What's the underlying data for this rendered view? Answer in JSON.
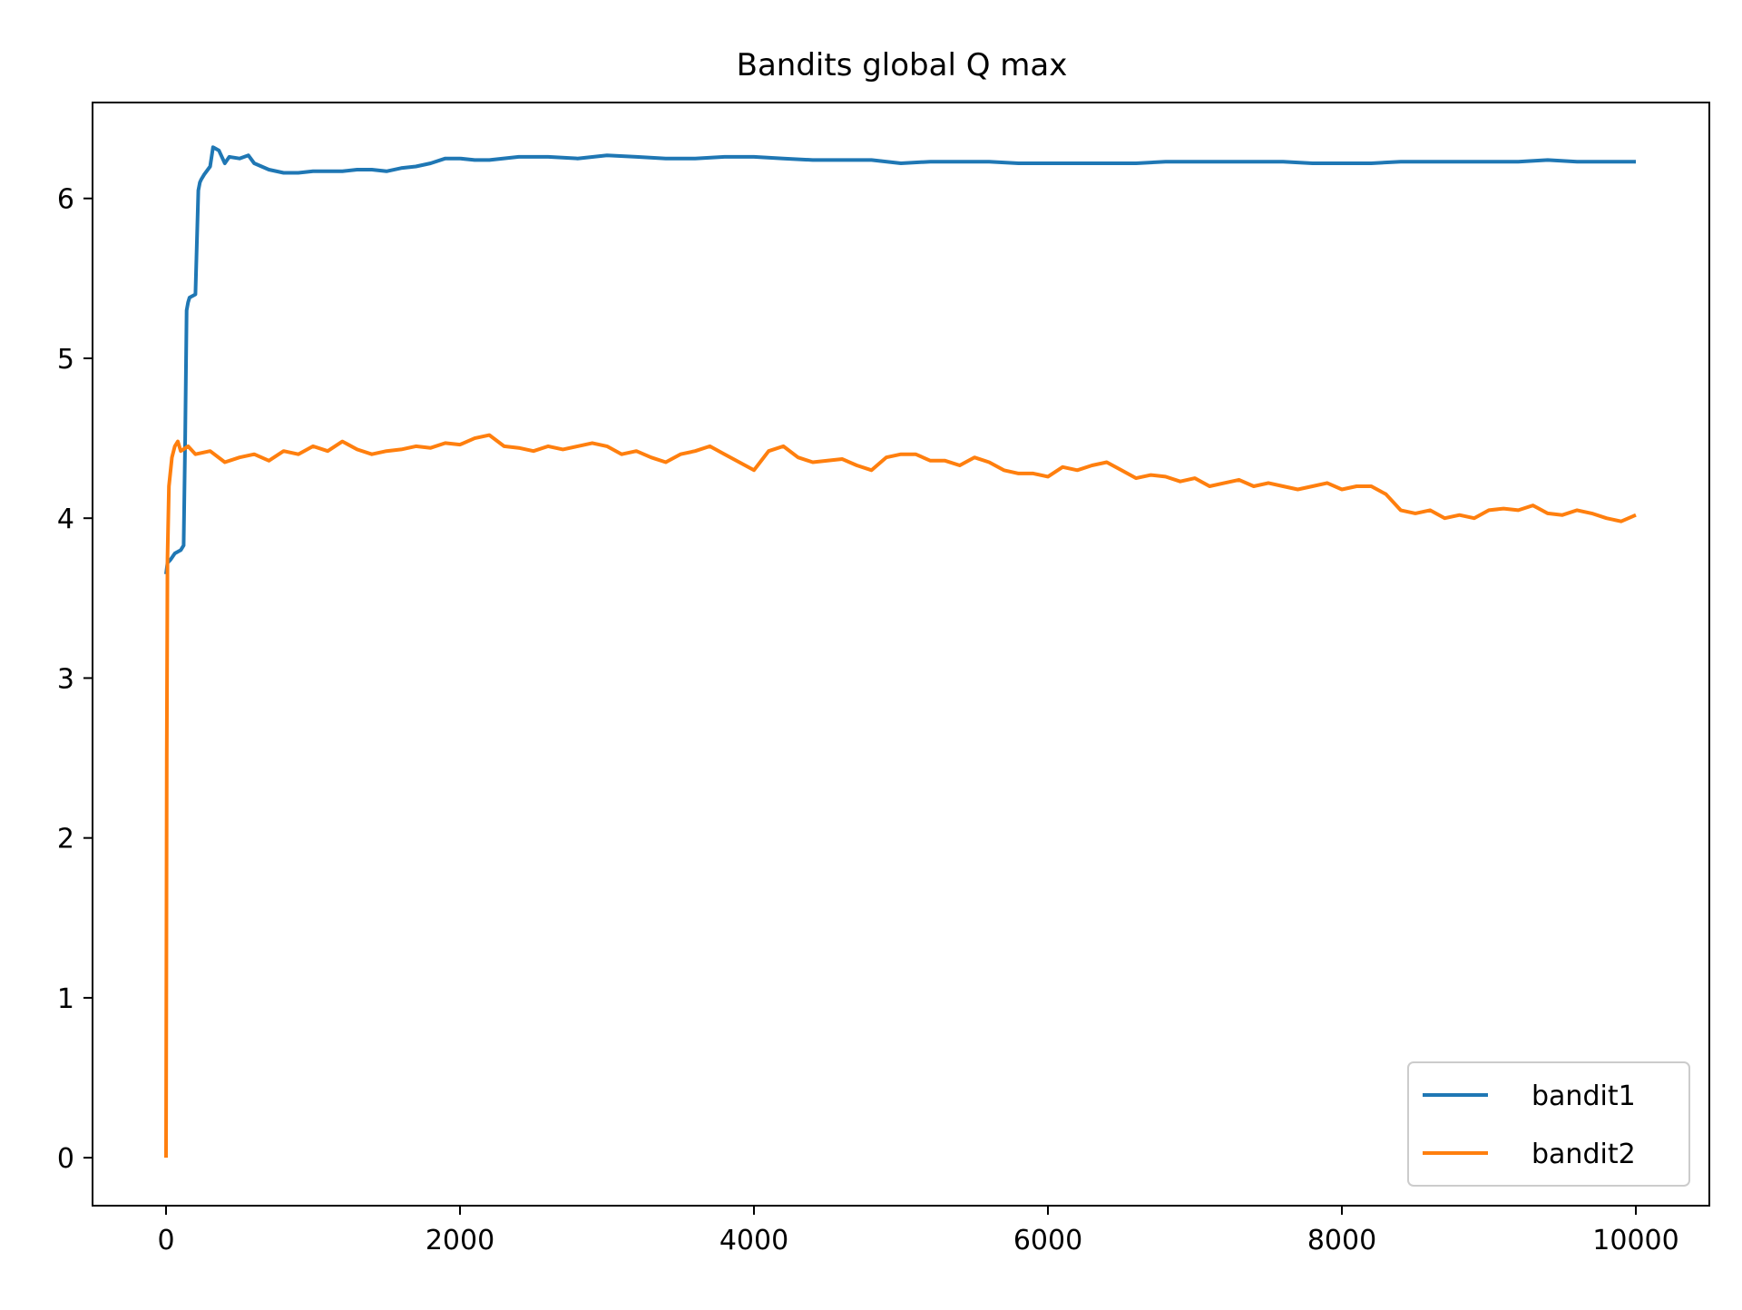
{
  "chart_data": {
    "type": "line",
    "title": "Bandits global Q max",
    "xlabel": "",
    "ylabel": "",
    "xlim": [
      -500,
      10500
    ],
    "ylim": [
      -0.3,
      6.6
    ],
    "xticks": [
      0,
      2000,
      4000,
      6000,
      8000,
      10000
    ],
    "xtick_labels": [
      "0",
      "2000",
      "4000",
      "6000",
      "8000",
      "10000"
    ],
    "yticks": [
      0,
      1,
      2,
      3,
      4,
      5,
      6
    ],
    "ytick_labels": [
      "0",
      "1",
      "2",
      "3",
      "4",
      "5",
      "6"
    ],
    "grid": false,
    "legend_position": "lower-right",
    "series": [
      {
        "name": "bandit1",
        "color": "#1f77b4",
        "x": [
          0,
          10,
          30,
          60,
          100,
          120,
          130,
          140,
          150,
          160,
          200,
          220,
          230,
          240,
          260,
          300,
          320,
          360,
          400,
          430,
          500,
          560,
          600,
          700,
          800,
          900,
          1000,
          1100,
          1200,
          1300,
          1400,
          1500,
          1600,
          1700,
          1800,
          1900,
          2000,
          2100,
          2200,
          2400,
          2600,
          2800,
          3000,
          3200,
          3400,
          3600,
          3800,
          4000,
          4200,
          4400,
          4600,
          4800,
          5000,
          5200,
          5400,
          5600,
          5800,
          6000,
          6200,
          6400,
          6600,
          6800,
          7000,
          7200,
          7400,
          7600,
          7800,
          8000,
          8200,
          8400,
          8600,
          8800,
          9000,
          9200,
          9400,
          9600,
          9800,
          10000
        ],
        "y": [
          3.65,
          3.72,
          3.74,
          3.78,
          3.8,
          3.83,
          4.5,
          5.3,
          5.35,
          5.38,
          5.4,
          6.05,
          6.1,
          6.12,
          6.15,
          6.2,
          6.32,
          6.3,
          6.22,
          6.26,
          6.25,
          6.27,
          6.22,
          6.18,
          6.16,
          6.16,
          6.17,
          6.17,
          6.17,
          6.18,
          6.18,
          6.17,
          6.19,
          6.2,
          6.22,
          6.25,
          6.25,
          6.24,
          6.24,
          6.26,
          6.26,
          6.25,
          6.27,
          6.26,
          6.25,
          6.25,
          6.26,
          6.26,
          6.25,
          6.24,
          6.24,
          6.24,
          6.22,
          6.23,
          6.23,
          6.23,
          6.22,
          6.22,
          6.22,
          6.22,
          6.22,
          6.23,
          6.23,
          6.23,
          6.23,
          6.23,
          6.22,
          6.22,
          6.22,
          6.23,
          6.23,
          6.23,
          6.23,
          6.23,
          6.24,
          6.23,
          6.23,
          6.23
        ]
      },
      {
        "name": "bandit2",
        "color": "#ff7f0e",
        "x": [
          0,
          5,
          10,
          20,
          40,
          60,
          80,
          100,
          150,
          200,
          300,
          400,
          500,
          600,
          700,
          800,
          900,
          1000,
          1100,
          1200,
          1300,
          1400,
          1500,
          1600,
          1700,
          1800,
          1900,
          2000,
          2100,
          2200,
          2300,
          2400,
          2500,
          2600,
          2700,
          2800,
          2900,
          3000,
          3100,
          3200,
          3300,
          3400,
          3500,
          3600,
          3700,
          3800,
          3900,
          4000,
          4100,
          4200,
          4300,
          4400,
          4500,
          4600,
          4700,
          4800,
          4900,
          5000,
          5100,
          5200,
          5300,
          5400,
          5500,
          5600,
          5700,
          5800,
          5900,
          6000,
          6100,
          6200,
          6300,
          6400,
          6500,
          6600,
          6700,
          6800,
          6900,
          7000,
          7100,
          7200,
          7300,
          7400,
          7500,
          7600,
          7700,
          7800,
          7900,
          8000,
          8100,
          8200,
          8300,
          8400,
          8500,
          8600,
          8700,
          8800,
          8900,
          9000,
          9100,
          9200,
          9300,
          9400,
          9500,
          9600,
          9700,
          9800,
          9900,
          10000
        ],
        "y": [
          0.0,
          2.5,
          3.75,
          4.2,
          4.38,
          4.45,
          4.48,
          4.42,
          4.45,
          4.4,
          4.42,
          4.35,
          4.38,
          4.4,
          4.36,
          4.42,
          4.4,
          4.45,
          4.42,
          4.48,
          4.43,
          4.4,
          4.42,
          4.43,
          4.45,
          4.44,
          4.47,
          4.46,
          4.5,
          4.52,
          4.45,
          4.44,
          4.42,
          4.45,
          4.43,
          4.45,
          4.47,
          4.45,
          4.4,
          4.42,
          4.38,
          4.35,
          4.4,
          4.42,
          4.45,
          4.4,
          4.35,
          4.3,
          4.42,
          4.45,
          4.38,
          4.35,
          4.36,
          4.37,
          4.33,
          4.3,
          4.38,
          4.4,
          4.4,
          4.36,
          4.36,
          4.33,
          4.38,
          4.35,
          4.3,
          4.28,
          4.28,
          4.26,
          4.32,
          4.3,
          4.33,
          4.35,
          4.3,
          4.25,
          4.27,
          4.26,
          4.23,
          4.25,
          4.2,
          4.22,
          4.24,
          4.2,
          4.22,
          4.2,
          4.18,
          4.2,
          4.22,
          4.18,
          4.2,
          4.2,
          4.15,
          4.05,
          4.03,
          4.05,
          4.0,
          4.02,
          4.0,
          4.05,
          4.06,
          4.05,
          4.08,
          4.03,
          4.02,
          4.05,
          4.03,
          4.0,
          3.98,
          4.02
        ]
      }
    ]
  }
}
